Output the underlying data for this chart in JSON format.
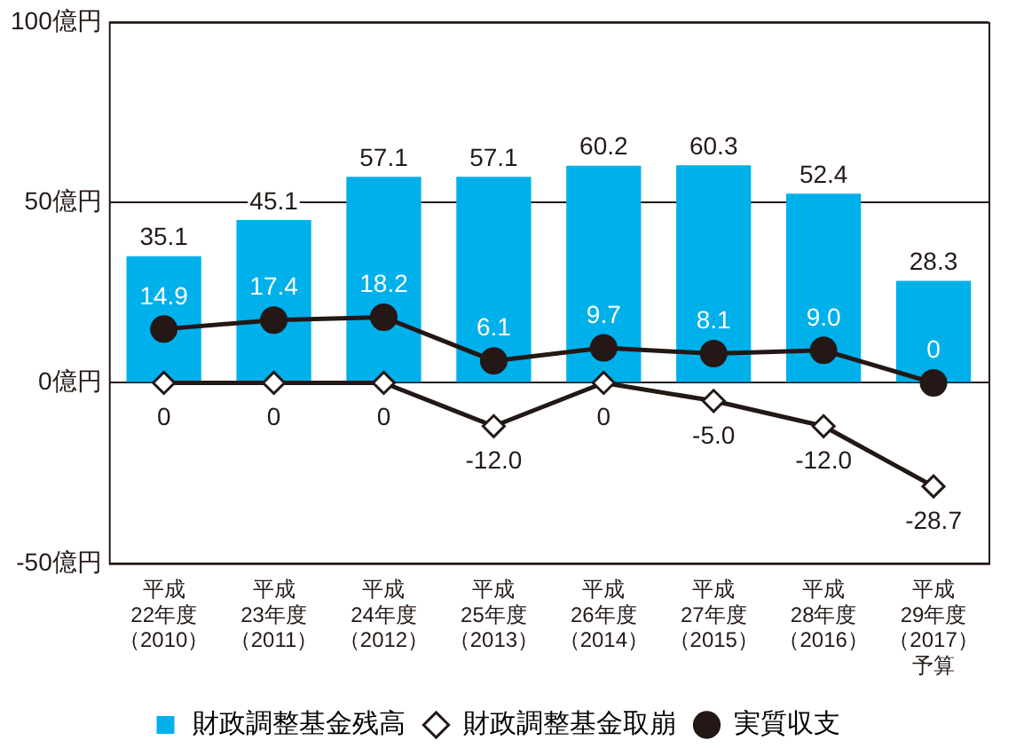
{
  "chart_data": {
    "type": "bar",
    "categories": [
      "平成22年度（2010）",
      "平成23年度（2011）",
      "平成24年度（2012）",
      "平成25年度（2013）",
      "平成26年度（2014）",
      "平成27年度（2015）",
      "平成28年度（2016）",
      "平成29年度（2017）予算"
    ],
    "series": [
      {
        "name": "財政調整基金残高",
        "color": "#00b0eb",
        "values": [
          35.1,
          45.1,
          57.1,
          57.1,
          60.2,
          60.3,
          52.4,
          28.3
        ],
        "value_labels": [
          "35.1",
          "45.1",
          "57.1",
          "57.1",
          "60.2",
          "60.3",
          "52.4",
          "28.3"
        ]
      },
      {
        "name": "財政調整基金取崩",
        "type": "line",
        "color": "#231815",
        "marker": "diamond",
        "values": [
          0,
          0,
          0,
          -12.0,
          0,
          -5.0,
          -12.0,
          -28.7
        ],
        "value_labels": [
          "0",
          "0",
          "0",
          "-12.0",
          "0",
          "-5.0",
          "-12.0",
          "-28.7"
        ]
      },
      {
        "name": "実質収支",
        "type": "line",
        "color": "#231815",
        "marker": "circle",
        "values": [
          14.9,
          17.4,
          18.2,
          6.1,
          9.7,
          8.1,
          9.0,
          0
        ],
        "value_labels": [
          "14.9",
          "17.4",
          "18.2",
          "6.1",
          "9.7",
          "8.1",
          "9.0",
          "0"
        ]
      }
    ],
    "ylim": [
      -50,
      100
    ],
    "yticks": [
      {
        "value": -50,
        "label": "-50億円"
      },
      {
        "value": 0,
        "label": "0億円"
      },
      {
        "value": 50,
        "label": "50億円"
      },
      {
        "value": 100,
        "label": "100億円"
      }
    ],
    "grid": "y",
    "legend": "bottom"
  }
}
